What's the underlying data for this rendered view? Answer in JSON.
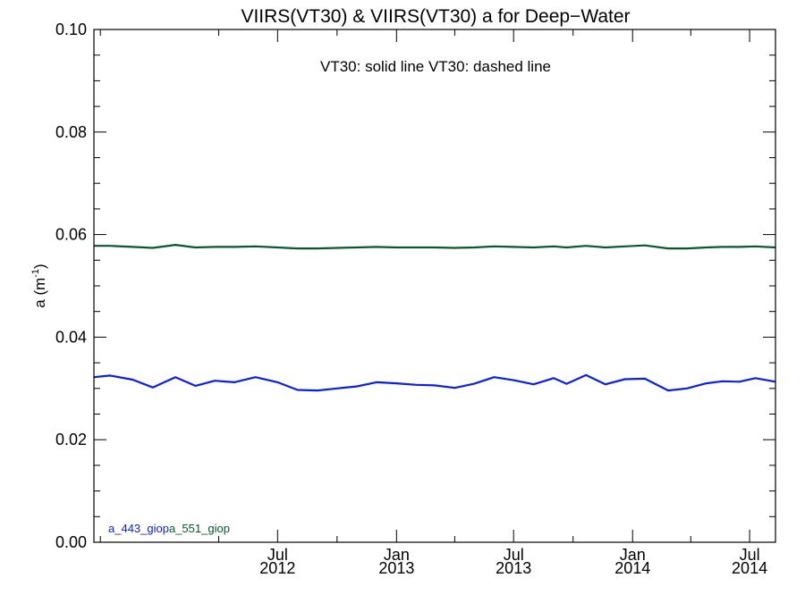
{
  "chart_data": {
    "type": "line",
    "title": "VIIRS(VT30) & VIIRS(VT30)  a for Deep−Water",
    "annotation": "VT30: solid line   VT30: dashed line",
    "ylabel": {
      "main": "a (m",
      "sup": "-1",
      "close": ")"
    },
    "xlabel": "",
    "ylim": [
      0.0,
      0.1
    ],
    "xlim": [
      "2011-09-21",
      "2014-08-10"
    ],
    "yticks": [
      "0.00",
      "0.02",
      "0.04",
      "0.06",
      "0.08",
      "0.10"
    ],
    "xticks": [
      {
        "date": "2012-07-01",
        "top": "Jul",
        "bottom": "2012"
      },
      {
        "date": "2013-01-01",
        "top": "Jan",
        "bottom": "2013"
      },
      {
        "date": "2013-07-01",
        "top": "Jul",
        "bottom": "2013"
      },
      {
        "date": "2014-01-01",
        "top": "Jan",
        "bottom": "2014"
      },
      {
        "date": "2014-07-01",
        "top": "Jul",
        "bottom": "2014"
      }
    ],
    "grid": false,
    "legend_position": "bottom-left",
    "series": [
      {
        "name": "a_443_giop",
        "color": "#0a1ee6",
        "points": [
          [
            "2011-09-21",
            0.0322
          ],
          [
            "2011-10-16",
            0.0325
          ],
          [
            "2011-11-20",
            0.0317
          ],
          [
            "2011-12-21",
            0.0302
          ],
          [
            "2012-01-25",
            0.0322
          ],
          [
            "2012-02-25",
            0.0305
          ],
          [
            "2012-03-26",
            0.0315
          ],
          [
            "2012-04-25",
            0.0312
          ],
          [
            "2012-05-28",
            0.0322
          ],
          [
            "2012-07-01",
            0.0312
          ],
          [
            "2012-08-01",
            0.0297
          ],
          [
            "2012-09-01",
            0.0296
          ],
          [
            "2012-10-01",
            0.03
          ],
          [
            "2012-11-01",
            0.0304
          ],
          [
            "2012-12-01",
            0.0312
          ],
          [
            "2013-01-01",
            0.031
          ],
          [
            "2013-02-01",
            0.0307
          ],
          [
            "2013-03-01",
            0.0306
          ],
          [
            "2013-04-01",
            0.0301
          ],
          [
            "2013-05-01",
            0.0309
          ],
          [
            "2013-06-01",
            0.0322
          ],
          [
            "2013-07-01",
            0.0316
          ],
          [
            "2013-08-01",
            0.0308
          ],
          [
            "2013-09-01",
            0.032
          ],
          [
            "2013-09-21",
            0.0309
          ],
          [
            "2013-10-21",
            0.0326
          ],
          [
            "2013-11-20",
            0.0308
          ],
          [
            "2013-12-20",
            0.0318
          ],
          [
            "2014-01-20",
            0.0319
          ],
          [
            "2014-02-25",
            0.0296
          ],
          [
            "2014-03-26",
            0.03
          ],
          [
            "2014-04-25",
            0.031
          ],
          [
            "2014-05-20",
            0.0314
          ],
          [
            "2014-06-15",
            0.0313
          ],
          [
            "2014-07-10",
            0.032
          ],
          [
            "2014-08-10",
            0.0313
          ]
        ]
      },
      {
        "name": "a_551_giop",
        "color": "#07582f",
        "points": [
          [
            "2011-09-21",
            0.0578
          ],
          [
            "2011-10-16",
            0.0578
          ],
          [
            "2011-11-20",
            0.0576
          ],
          [
            "2011-12-21",
            0.0574
          ],
          [
            "2012-01-25",
            0.058
          ],
          [
            "2012-02-25",
            0.0575
          ],
          [
            "2012-03-26",
            0.0576
          ],
          [
            "2012-04-25",
            0.0576
          ],
          [
            "2012-05-28",
            0.0577
          ],
          [
            "2012-07-01",
            0.0575
          ],
          [
            "2012-08-01",
            0.0573
          ],
          [
            "2012-09-01",
            0.0573
          ],
          [
            "2012-10-01",
            0.0574
          ],
          [
            "2012-11-01",
            0.0575
          ],
          [
            "2012-12-01",
            0.0576
          ],
          [
            "2013-01-01",
            0.0575
          ],
          [
            "2013-02-01",
            0.0575
          ],
          [
            "2013-03-01",
            0.0575
          ],
          [
            "2013-04-01",
            0.0574
          ],
          [
            "2013-05-01",
            0.0575
          ],
          [
            "2013-06-01",
            0.0577
          ],
          [
            "2013-07-01",
            0.0576
          ],
          [
            "2013-08-01",
            0.0575
          ],
          [
            "2013-09-01",
            0.0577
          ],
          [
            "2013-09-21",
            0.0575
          ],
          [
            "2013-10-21",
            0.0578
          ],
          [
            "2013-11-20",
            0.0575
          ],
          [
            "2013-12-20",
            0.0577
          ],
          [
            "2014-01-20",
            0.0579
          ],
          [
            "2014-02-25",
            0.0573
          ],
          [
            "2014-03-26",
            0.0573
          ],
          [
            "2014-04-25",
            0.0575
          ],
          [
            "2014-05-20",
            0.0576
          ],
          [
            "2014-06-15",
            0.0576
          ],
          [
            "2014-07-10",
            0.0577
          ],
          [
            "2014-08-10",
            0.0575
          ]
        ]
      }
    ]
  }
}
